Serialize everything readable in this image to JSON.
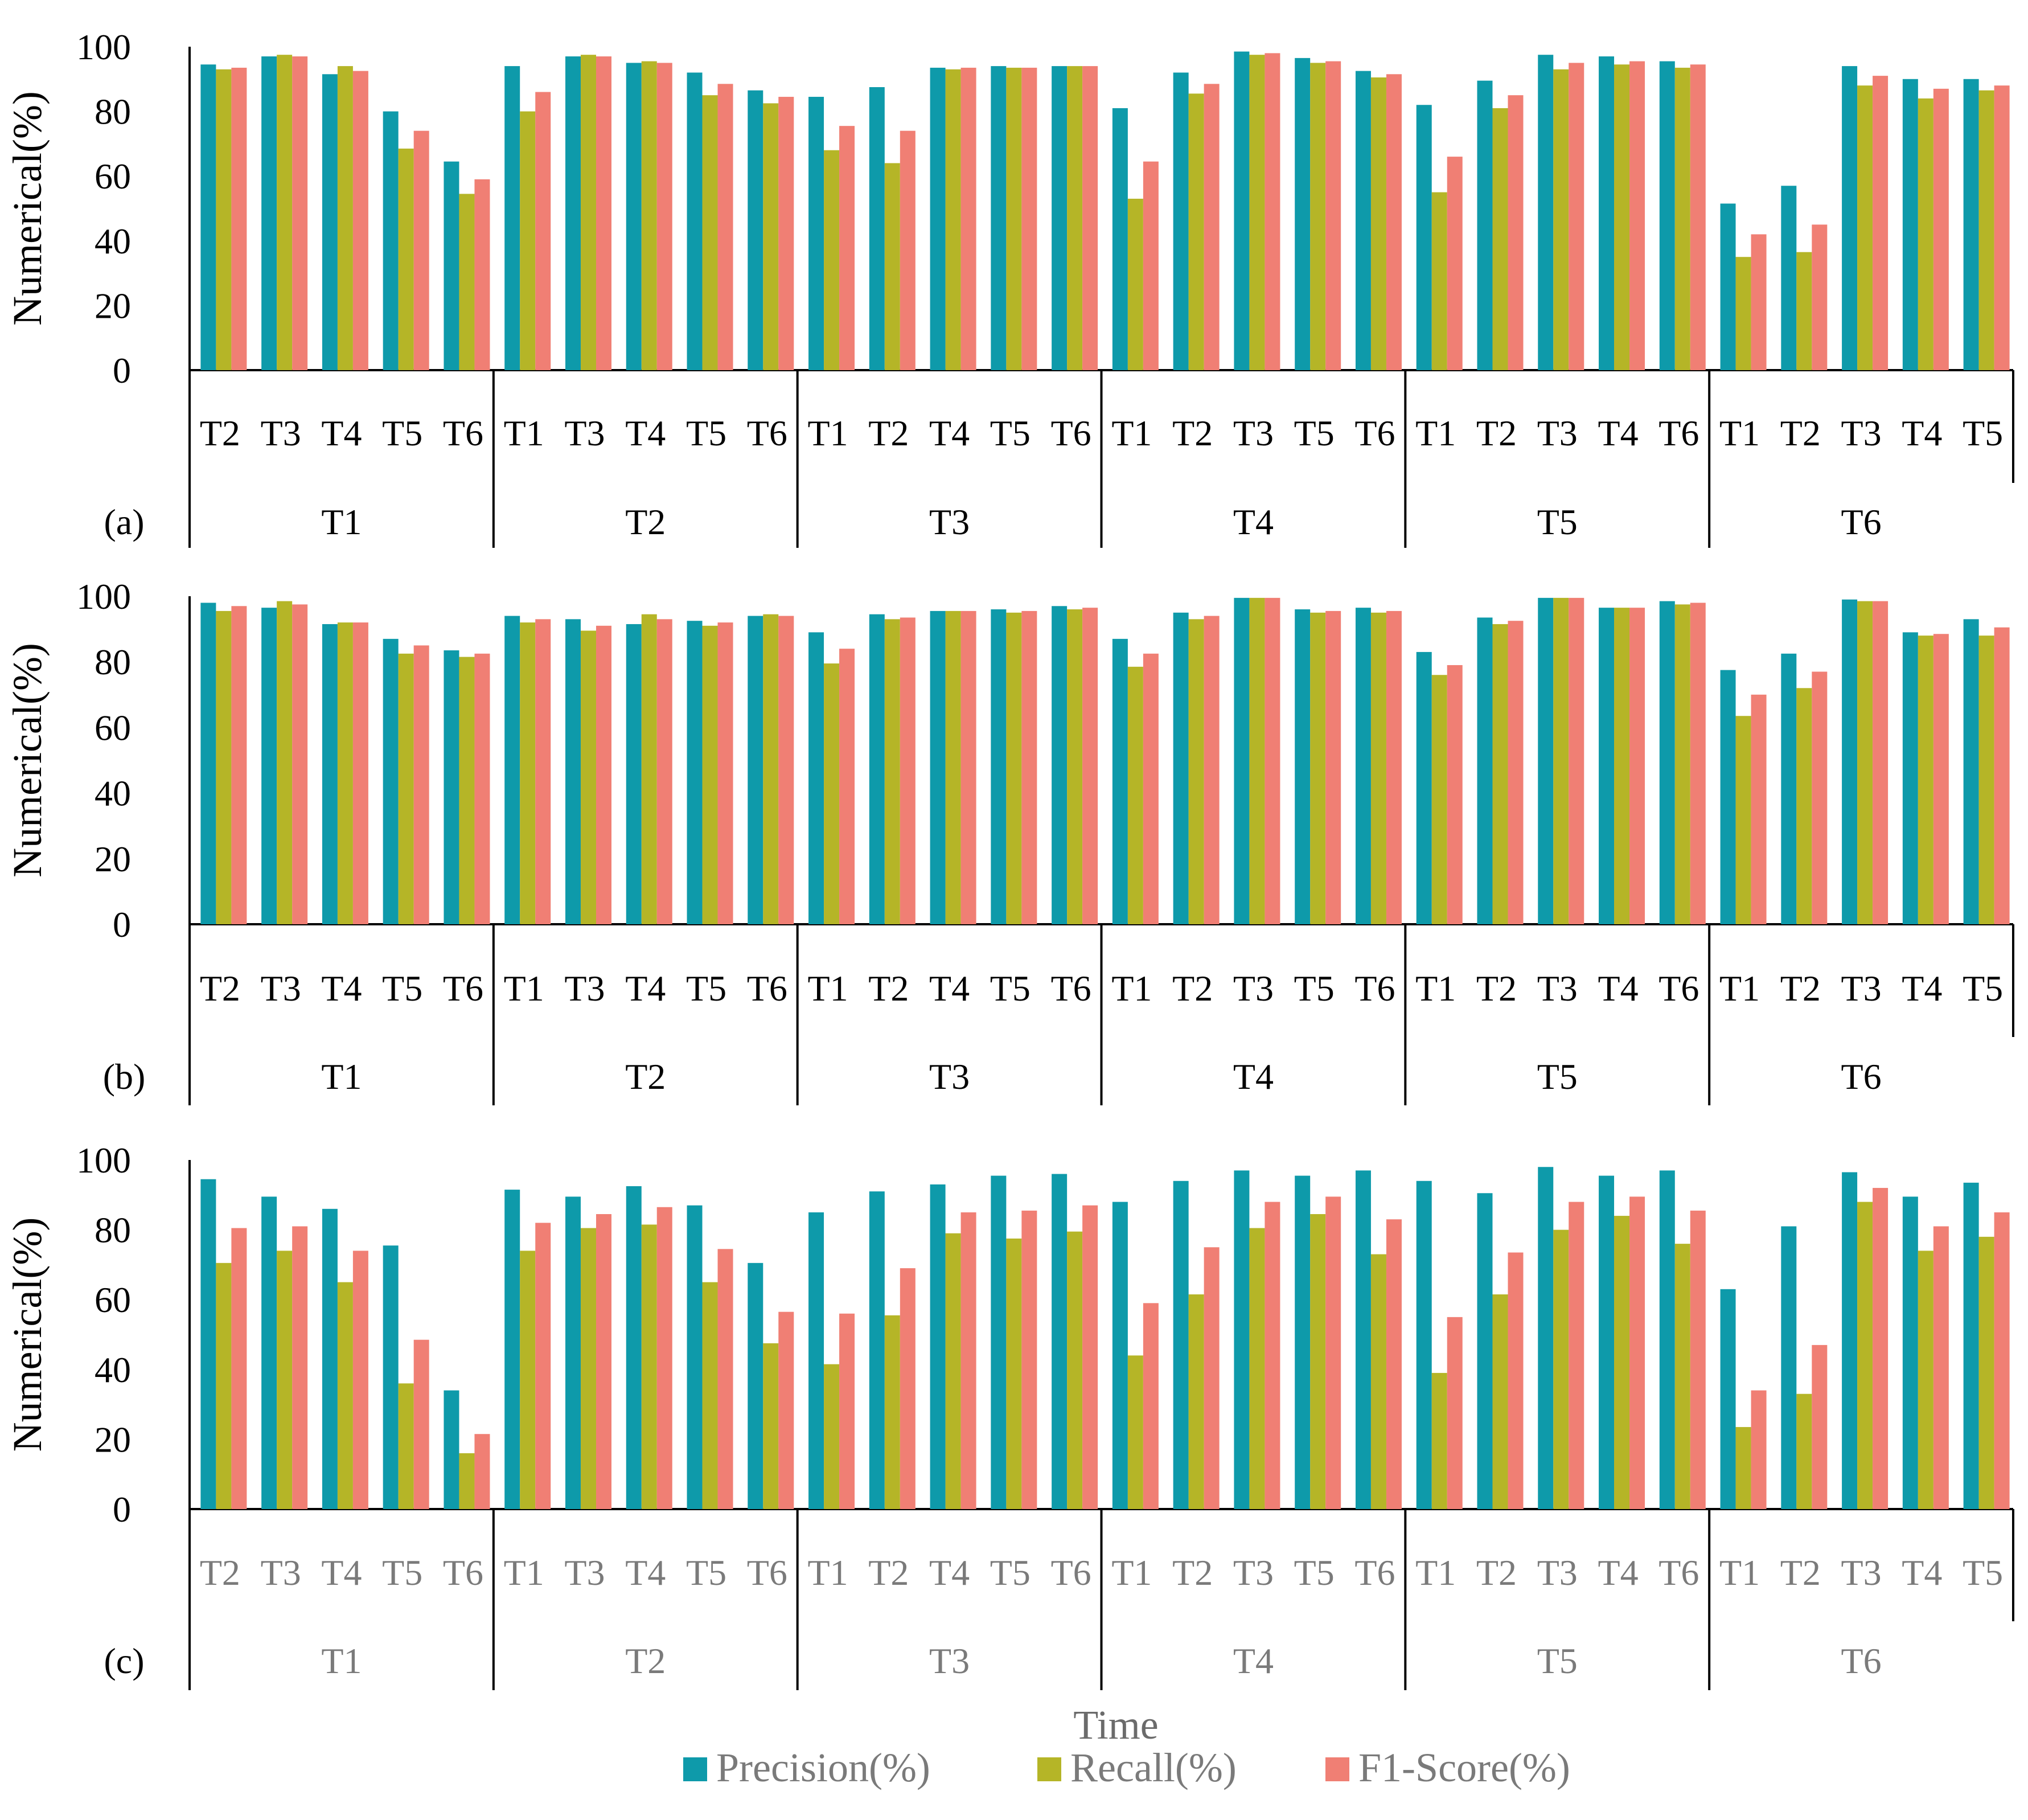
{
  "colors": {
    "precision": "#0E9AAA",
    "recall": "#B5B527",
    "f1": "#F07F74",
    "axis": "#000000",
    "gray_text": "#7a7a7a"
  },
  "chart_data": {
    "type": "bar",
    "x_title": "Time",
    "y_title": "Numerical(%)",
    "y_ticks": [
      "0",
      "20",
      "40",
      "60",
      "80",
      "100"
    ],
    "ylim": [
      0,
      100
    ],
    "legend": {
      "position": "bottom-center",
      "entries": [
        "Precision(%)",
        "Recall(%)",
        "F1-Score(%)"
      ]
    },
    "groups": [
      {
        "label": "T1",
        "subs": [
          "T2",
          "T3",
          "T4",
          "T5",
          "T6"
        ]
      },
      {
        "label": "T2",
        "subs": [
          "T1",
          "T3",
          "T4",
          "T5",
          "T6"
        ]
      },
      {
        "label": "T3",
        "subs": [
          "T1",
          "T2",
          "T4",
          "T5",
          "T6"
        ]
      },
      {
        "label": "T4",
        "subs": [
          "T1",
          "T2",
          "T3",
          "T5",
          "T6"
        ]
      },
      {
        "label": "T5",
        "subs": [
          "T1",
          "T2",
          "T3",
          "T4",
          "T6"
        ]
      },
      {
        "label": "T6",
        "subs": [
          "T1",
          "T2",
          "T3",
          "T4",
          "T5"
        ]
      }
    ],
    "panels": [
      {
        "label": "(a)",
        "series": [
          {
            "name": "Precision(%)",
            "values": [
              94.5,
              97,
              91.5,
              80,
              64.5,
              94,
              97,
              95,
              92,
              86.5,
              84.5,
              87.5,
              93.5,
              94,
              94,
              81,
              92,
              98.5,
              96.5,
              92.5,
              82,
              89.5,
              97.5,
              97,
              95.5,
              51.5,
              57,
              94,
              90,
              90
            ]
          },
          {
            "name": "Recall(%)",
            "values": [
              93,
              97.5,
              94,
              68.5,
              54.5,
              80,
              97.5,
              95.5,
              85,
              82.5,
              68,
              64,
              93,
              93.5,
              94,
              53,
              85.5,
              97.5,
              95,
              90.5,
              55,
              81,
              93,
              94.5,
              93.5,
              35,
              36.5,
              88,
              84,
              86.5
            ]
          },
          {
            "name": "F1-Score(%)",
            "values": [
              93.5,
              97,
              92.5,
              74,
              59,
              86,
              97,
              95,
              88.5,
              84.5,
              75.5,
              74,
              93.5,
              93.5,
              94,
              64.5,
              88.5,
              98,
              95.5,
              91.5,
              66,
              85,
              95,
              95.5,
              94.5,
              42,
              45,
              91,
              87,
              88
            ]
          }
        ]
      },
      {
        "label": "(b)",
        "series": [
          {
            "name": "Precision(%)",
            "values": [
              98,
              96.5,
              91.5,
              87,
              83.5,
              94,
              93,
              91.5,
              92.5,
              94,
              89,
              94.5,
              95.5,
              96,
              97,
              87,
              95,
              99.5,
              96,
              96.5,
              83,
              93.5,
              99.5,
              96.5,
              98.5,
              77.5,
              82.5,
              99,
              89,
              93
            ]
          },
          {
            "name": "Recall(%)",
            "values": [
              95.5,
              98.5,
              92,
              82.5,
              81.5,
              92,
              89.5,
              94.5,
              91,
              94.5,
              79.5,
              93,
              95.5,
              95,
              96,
              78.5,
              93,
              99.5,
              95,
              95,
              76,
              91.5,
              99.5,
              96.5,
              97.5,
              63.5,
              72,
              98.5,
              88,
              88
            ]
          },
          {
            "name": "F1-Score(%)",
            "values": [
              97,
              97.5,
              92,
              85,
              82.5,
              93,
              91,
              93,
              92,
              94,
              84,
              93.5,
              95.5,
              95.5,
              96.5,
              82.5,
              94,
              99.5,
              95.5,
              95.5,
              79,
              92.5,
              99.5,
              96.5,
              98,
              70,
              77,
              98.5,
              88.5,
              90.5
            ]
          }
        ]
      },
      {
        "label": "(c)",
        "series": [
          {
            "name": "Precision(%)",
            "values": [
              94.5,
              89.5,
              86,
              75.5,
              34,
              91.5,
              89.5,
              92.5,
              87,
              70.5,
              85,
              91,
              93,
              95.5,
              96,
              88,
              94,
              97,
              95.5,
              97,
              94,
              90.5,
              98,
              95.5,
              97,
              63,
              81,
              96.5,
              89.5,
              93.5
            ]
          },
          {
            "name": "Recall(%)",
            "values": [
              70.5,
              74,
              65,
              36,
              16,
              74,
              80.5,
              81.5,
              65,
              47.5,
              41.5,
              55.5,
              79,
              77.5,
              79.5,
              44,
              61.5,
              80.5,
              84.5,
              73,
              39,
              61.5,
              80,
              84,
              76,
              23.5,
              33,
              88,
              74,
              78
            ]
          },
          {
            "name": "F1-Score(%)",
            "values": [
              80.5,
              81,
              74,
              48.5,
              21.5,
              82,
              84.5,
              86.5,
              74.5,
              56.5,
              56,
              69,
              85,
              85.5,
              87,
              59,
              75,
              88,
              89.5,
              83,
              55,
              73.5,
              88,
              89.5,
              85.5,
              34,
              47,
              92,
              81,
              85
            ]
          }
        ]
      }
    ]
  }
}
